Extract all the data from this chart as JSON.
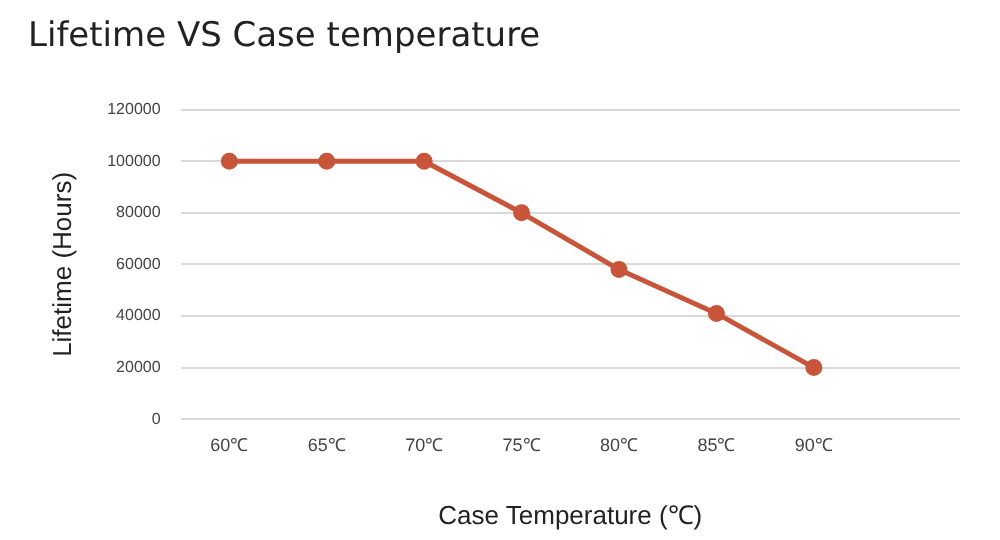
{
  "chart_data": {
    "type": "line",
    "title": "Lifetime VS Case temperature",
    "xlabel": "Case Temperature (℃)",
    "ylabel": "Lifetime (Hours)",
    "categories": [
      "60℃",
      "65℃",
      "70℃",
      "75℃",
      "80℃",
      "85℃",
      "90℃",
      null
    ],
    "series": [
      {
        "color": "#c8553a",
        "values": [
          100000,
          100000,
          100000,
          80000,
          58000,
          41000,
          20000,
          null
        ]
      }
    ],
    "ylim": [
      0,
      120000
    ],
    "yticks": [
      0,
      20000,
      40000,
      60000,
      80000,
      100000,
      120000
    ],
    "grid": "y",
    "legend": false,
    "marker": "circle",
    "line_style": "solid"
  }
}
